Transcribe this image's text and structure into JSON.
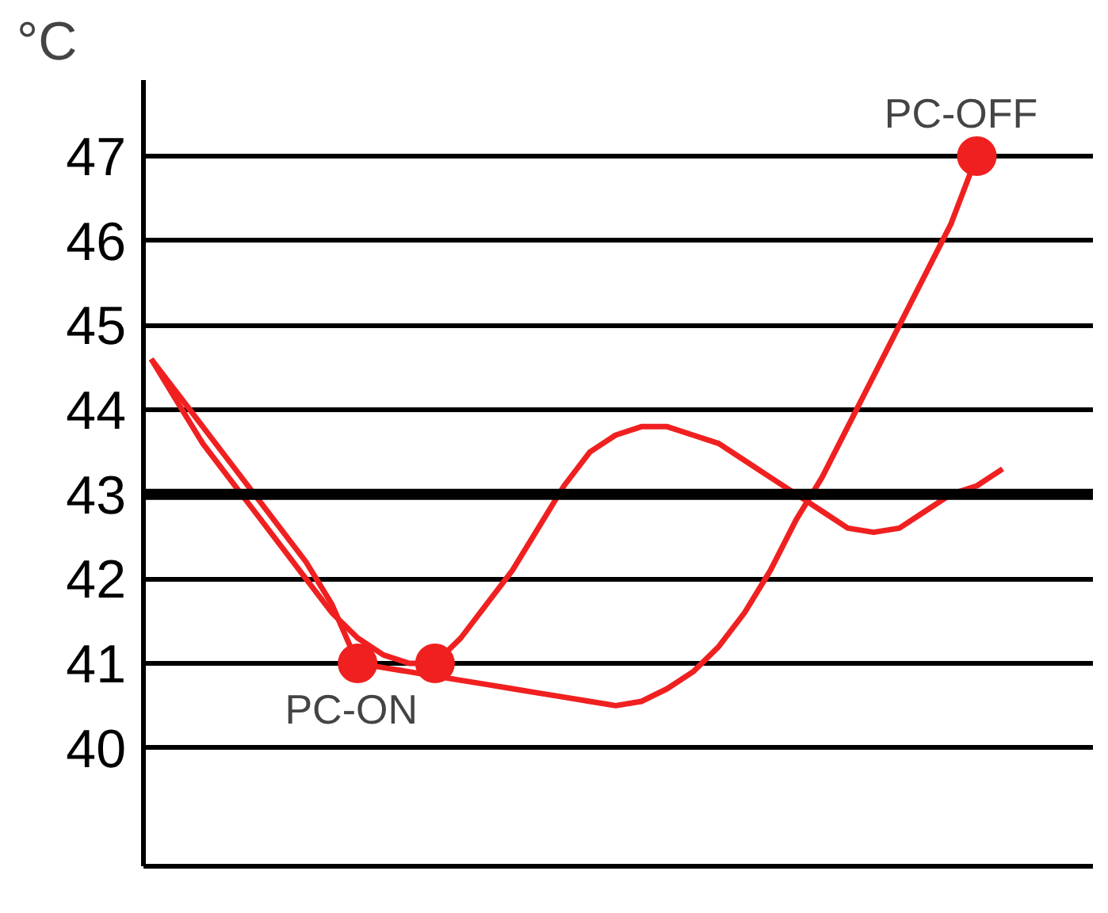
{
  "chart_data": {
    "type": "line",
    "ylabel": "°C",
    "ylim": [
      38.6,
      47.9
    ],
    "yticks": [
      40,
      41,
      42,
      43,
      44,
      45,
      46,
      47
    ],
    "tick_labels": "y",
    "grid": "y",
    "categories": [
      null,
      null,
      null,
      null,
      null,
      null,
      null,
      null,
      null,
      null,
      null,
      null,
      null,
      null,
      null,
      null,
      null,
      null,
      null,
      null,
      null,
      null,
      null,
      null,
      null,
      null,
      null,
      null,
      null,
      null,
      null,
      null,
      null,
      null
    ],
    "series": [
      {
        "color": "#f02020",
        "values": [
          44.6,
          44.2,
          43.8,
          43.4,
          43.0,
          42.6,
          42.2,
          41.7,
          41.0,
          40.95,
          40.9,
          40.85,
          40.8,
          40.75,
          40.7,
          40.65,
          40.6,
          40.55,
          40.5,
          40.55,
          40.7,
          40.9,
          41.2,
          41.6,
          42.1,
          42.7,
          43.2,
          43.8,
          44.4,
          45.0,
          45.6,
          46.2,
          47.0,
          null
        ]
      },
      {
        "color": "#f02020",
        "values": [
          44.6,
          44.1,
          43.6,
          43.2,
          42.8,
          42.4,
          42.0,
          41.6,
          41.3,
          41.1,
          41.0,
          41.0,
          41.3,
          41.7,
          42.1,
          42.6,
          43.1,
          43.5,
          43.7,
          43.8,
          43.8,
          43.7,
          43.6,
          43.4,
          43.2,
          43.0,
          42.8,
          42.6,
          42.55,
          42.6,
          42.8,
          43.0,
          43.1,
          43.3
        ]
      },
      {
        "type": "scatter",
        "marker": "circle",
        "color": "#f02020",
        "values": [
          null,
          null,
          null,
          null,
          null,
          null,
          null,
          null,
          41.0,
          null,
          null,
          41.0,
          null,
          null,
          null,
          null,
          null,
          null,
          null,
          null,
          null,
          null,
          null,
          null,
          null,
          null,
          null,
          null,
          null,
          null,
          null,
          null,
          47.0,
          null
        ]
      }
    ],
    "ref_lines": [
      {
        "axis": "y",
        "value": 43,
        "color": "#000000"
      }
    ],
    "annotations": [
      "PC-ON",
      "PC-OFF"
    ]
  }
}
